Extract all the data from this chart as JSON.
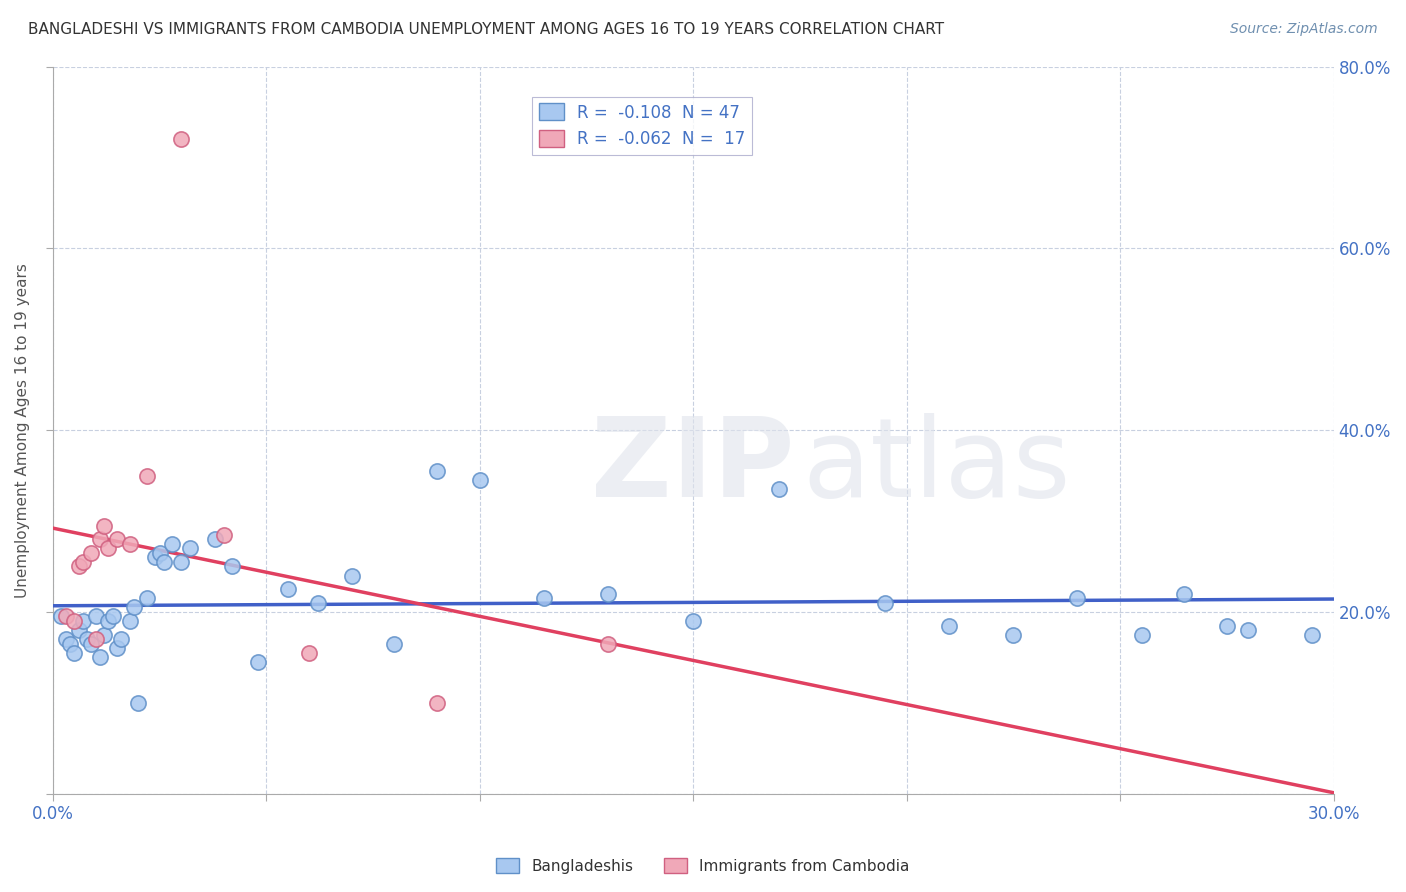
{
  "title": "BANGLADESHI VS IMMIGRANTS FROM CAMBODIA UNEMPLOYMENT AMONG AGES 16 TO 19 YEARS CORRELATION CHART",
  "source": "Source: ZipAtlas.com",
  "ylabel": "Unemployment Among Ages 16 to 19 years",
  "xlim": [
    0.0,
    0.3
  ],
  "ylim": [
    0.0,
    0.8
  ],
  "xticks": [
    0.0,
    0.05,
    0.1,
    0.15,
    0.2,
    0.25,
    0.3
  ],
  "yticks": [
    0.0,
    0.2,
    0.4,
    0.6,
    0.8
  ],
  "r_bangladeshi": -0.108,
  "n_bangladeshi": 47,
  "r_cambodia": -0.062,
  "n_cambodia": 17,
  "color_bangladeshi": "#a8c8f0",
  "color_cambodia": "#f0a8b8",
  "line_color_bangladeshi": "#4060c8",
  "line_color_cambodia": "#e04060",
  "blue_x": [
    0.002,
    0.003,
    0.004,
    0.005,
    0.006,
    0.007,
    0.008,
    0.009,
    0.01,
    0.011,
    0.012,
    0.013,
    0.014,
    0.015,
    0.016,
    0.018,
    0.019,
    0.02,
    0.022,
    0.024,
    0.025,
    0.026,
    0.028,
    0.03,
    0.032,
    0.038,
    0.042,
    0.048,
    0.055,
    0.062,
    0.07,
    0.08,
    0.09,
    0.1,
    0.115,
    0.13,
    0.15,
    0.17,
    0.195,
    0.21,
    0.225,
    0.24,
    0.255,
    0.265,
    0.275,
    0.28,
    0.295
  ],
  "blue_y": [
    0.195,
    0.17,
    0.165,
    0.155,
    0.18,
    0.19,
    0.17,
    0.165,
    0.195,
    0.15,
    0.175,
    0.19,
    0.195,
    0.16,
    0.17,
    0.19,
    0.205,
    0.1,
    0.215,
    0.26,
    0.265,
    0.255,
    0.275,
    0.255,
    0.27,
    0.28,
    0.25,
    0.145,
    0.225,
    0.21,
    0.24,
    0.165,
    0.355,
    0.345,
    0.215,
    0.22,
    0.19,
    0.335,
    0.21,
    0.185,
    0.175,
    0.215,
    0.175,
    0.22,
    0.185,
    0.18,
    0.175
  ],
  "pink_x": [
    0.003,
    0.005,
    0.006,
    0.007,
    0.009,
    0.01,
    0.011,
    0.012,
    0.013,
    0.015,
    0.018,
    0.022,
    0.03,
    0.04,
    0.06,
    0.09,
    0.13
  ],
  "pink_y": [
    0.195,
    0.19,
    0.25,
    0.255,
    0.265,
    0.17,
    0.28,
    0.295,
    0.27,
    0.28,
    0.275,
    0.35,
    0.72,
    0.285,
    0.155,
    0.1,
    0.165
  ]
}
